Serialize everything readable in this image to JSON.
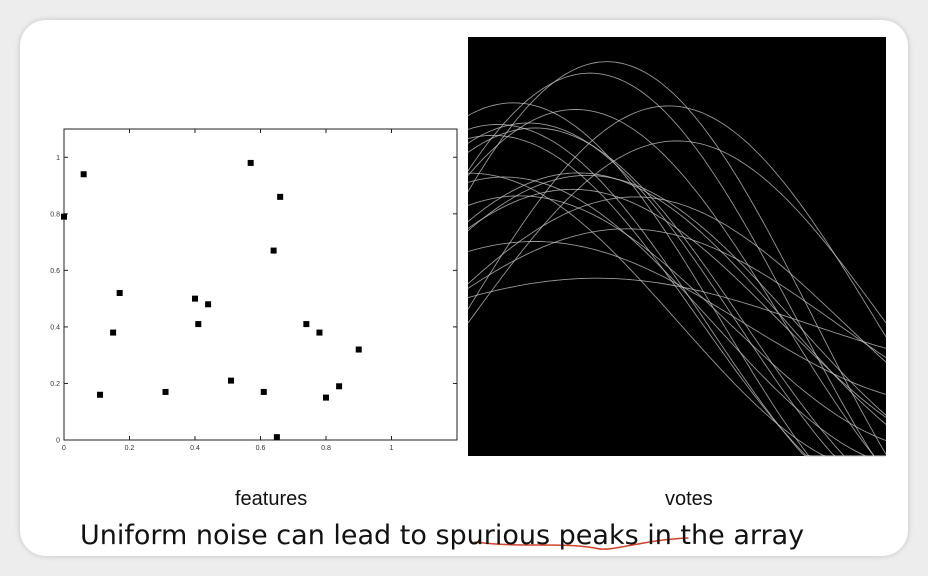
{
  "slide": {
    "feature_caption": "features",
    "votes_caption": "votes",
    "statement": "Uniform noise can lead to spurious peaks in the array",
    "underline_color": "#d0442c"
  },
  "chart_data": [
    {
      "type": "scatter",
      "title": "",
      "xlabel": "",
      "ylabel": "",
      "xlim": [
        0,
        1.2
      ],
      "ylim": [
        0,
        1.1
      ],
      "xticks": [
        "0",
        "0.2",
        "0.4",
        "0.6",
        "0.8",
        "1"
      ],
      "xtick_values": [
        0,
        0.2,
        0.4,
        0.6,
        0.8,
        1
      ],
      "yticks": [
        "0",
        "0.2",
        "0.4",
        "0.6",
        "0.8",
        "1"
      ],
      "ytick_values": [
        0,
        0.2,
        0.4,
        0.6,
        0.8,
        1
      ],
      "grid": false,
      "marker_color": "#000000",
      "points": [
        {
          "x": 0.0,
          "y": 0.79
        },
        {
          "x": 0.06,
          "y": 0.94
        },
        {
          "x": 0.11,
          "y": 0.16
        },
        {
          "x": 0.15,
          "y": 0.38
        },
        {
          "x": 0.17,
          "y": 0.52
        },
        {
          "x": 0.31,
          "y": 0.17
        },
        {
          "x": 0.4,
          "y": 0.5
        },
        {
          "x": 0.41,
          "y": 0.41
        },
        {
          "x": 0.44,
          "y": 0.48
        },
        {
          "x": 0.51,
          "y": 0.21
        },
        {
          "x": 0.57,
          "y": 0.98
        },
        {
          "x": 0.61,
          "y": 0.17
        },
        {
          "x": 0.64,
          "y": 0.67
        },
        {
          "x": 0.65,
          "y": 0.01
        },
        {
          "x": 0.66,
          "y": 0.86
        },
        {
          "x": 0.74,
          "y": 0.41
        },
        {
          "x": 0.78,
          "y": 0.38
        },
        {
          "x": 0.8,
          "y": 0.15
        },
        {
          "x": 0.84,
          "y": 0.19
        },
        {
          "x": 0.9,
          "y": 0.32
        }
      ]
    },
    {
      "type": "heatmap",
      "title": "",
      "xlabel": "",
      "ylabel": "",
      "background": "#000000",
      "curve_color": "#c8c8c8"
    }
  ]
}
